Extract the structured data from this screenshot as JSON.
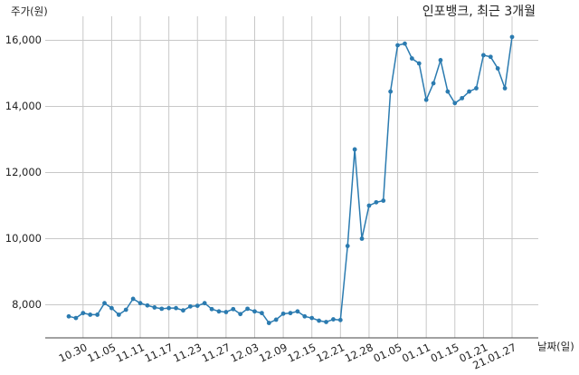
{
  "chart_data": {
    "type": "line",
    "title": "인포뱅크, 최근 3개월",
    "y_label": "주가(원)",
    "x_label": "날짜(일)",
    "categories": [
      null,
      null,
      "10.30",
      null,
      null,
      null,
      "11.05",
      null,
      null,
      null,
      "11.11",
      null,
      null,
      null,
      "11.17",
      null,
      null,
      null,
      "11.23",
      null,
      null,
      null,
      "11.27",
      null,
      null,
      null,
      "12.03",
      null,
      null,
      null,
      "12.09",
      null,
      null,
      null,
      "12.15",
      null,
      null,
      null,
      "12.21",
      null,
      null,
      null,
      "12.28",
      null,
      null,
      null,
      "01.05",
      null,
      null,
      null,
      "01.11",
      null,
      null,
      null,
      "01.15",
      null,
      null,
      null,
      "01.21",
      null,
      null,
      null,
      "21.01.27"
    ],
    "series": [
      {
        "name": "인포뱅크",
        "color": "#2b7bb0",
        "values": [
          7650,
          7600,
          7750,
          7700,
          7700,
          8050,
          7900,
          7700,
          7850,
          8180,
          8050,
          7980,
          7920,
          7880,
          7900,
          7900,
          7830,
          7950,
          7970,
          8050,
          7870,
          7800,
          7780,
          7870,
          7720,
          7880,
          7800,
          7750,
          7450,
          7550,
          7730,
          7750,
          7800,
          7650,
          7600,
          7520,
          7480,
          7560,
          7540,
          9780,
          12700,
          10000,
          11000,
          11100,
          11150,
          14450,
          15850,
          15900,
          15450,
          15300,
          14200,
          14700,
          15400,
          14450,
          14100,
          14250,
          14450,
          14550,
          15550,
          15500,
          15150,
          14550,
          16100
        ]
      }
    ],
    "ylim": [
      7000,
      17000
    ],
    "yticks": [
      {
        "value": 8000,
        "label": "8,000"
      },
      {
        "value": 10000,
        "label": "10,000"
      },
      {
        "value": 12000,
        "label": "12,000"
      },
      {
        "value": 14000,
        "label": "14,000"
      },
      {
        "value": 16000,
        "label": "16,000"
      }
    ],
    "grid": true
  }
}
